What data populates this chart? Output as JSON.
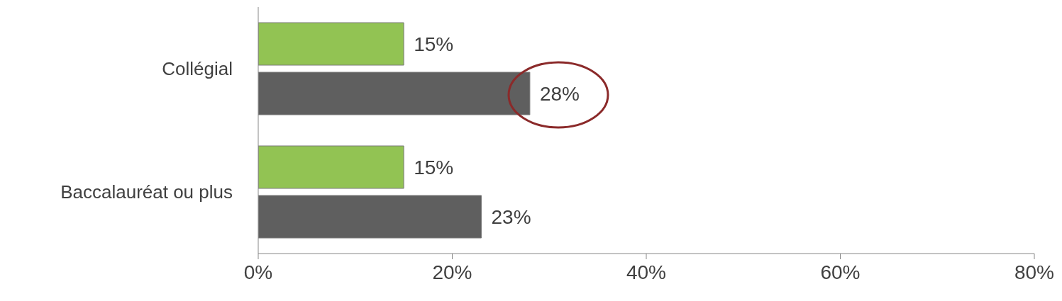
{
  "chart_data": {
    "type": "bar",
    "orientation": "horizontal",
    "categories": [
      "Collégial",
      "Baccalauréat ou plus"
    ],
    "series": [
      {
        "color": "#92c353",
        "values": [
          15,
          15
        ],
        "value_labels": [
          "15%",
          "15%"
        ]
      },
      {
        "color": "#5f5f5f",
        "values": [
          28,
          23
        ],
        "value_labels": [
          "28%",
          "23%"
        ]
      }
    ],
    "xlim": [
      0,
      80
    ],
    "xticks": [
      {
        "value": 0,
        "label": "0%"
      },
      {
        "value": 20,
        "label": "20%"
      },
      {
        "value": 40,
        "label": "40%"
      },
      {
        "value": 60,
        "label": "60%"
      },
      {
        "value": 80,
        "label": "80%"
      }
    ],
    "grid": false,
    "legend": false
  }
}
